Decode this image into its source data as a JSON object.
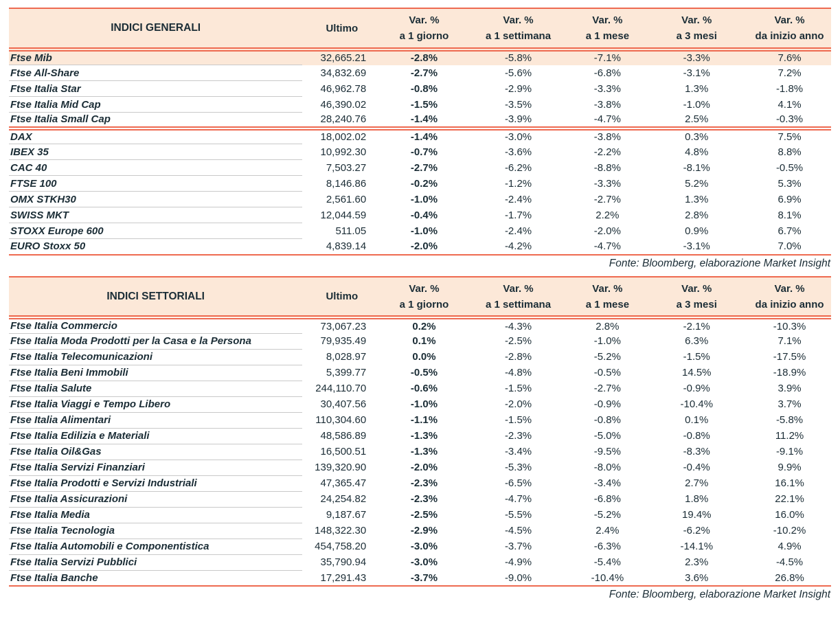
{
  "colors": {
    "accent_line": "#ee6a50",
    "header_background": "#fce8d8",
    "text": "#1b2d36",
    "row_hairline": "#c9c9c9",
    "highlight_row_background": "#fce8d8"
  },
  "source_note": "Fonte: Bloomberg, elaborazione Market Insight",
  "columns": {
    "ultimo": "Ultimo",
    "var_label": "Var. %",
    "sub": [
      "a 1 giorno",
      "a 1 settimana",
      "a 1 mese",
      "a 3 mesi",
      "da inizio anno"
    ]
  },
  "tables": [
    {
      "title": "INDICI GENERALI",
      "highlight_first_row": true,
      "groups": [
        {
          "rows": [
            {
              "name": "Ftse Mib",
              "ultimo": "32,665.21",
              "vars": [
                "-2.8%",
                "-5.8%",
                "-7.1%",
                "-3.3%",
                "7.6%"
              ]
            },
            {
              "name": "Ftse All-Share",
              "ultimo": "34,832.69",
              "vars": [
                "-2.7%",
                "-5.6%",
                "-6.8%",
                "-3.1%",
                "7.2%"
              ]
            },
            {
              "name": "Ftse Italia Star",
              "ultimo": "46,962.78",
              "vars": [
                "-0.8%",
                "-2.9%",
                "-3.3%",
                "1.3%",
                "-1.8%"
              ]
            },
            {
              "name": "Ftse Italia Mid Cap",
              "ultimo": "46,390.02",
              "vars": [
                "-1.5%",
                "-3.5%",
                "-3.8%",
                "-1.0%",
                "4.1%"
              ]
            },
            {
              "name": "Ftse Italia Small Cap",
              "ultimo": "28,240.76",
              "vars": [
                "-1.4%",
                "-3.9%",
                "-4.7%",
                "2.5%",
                "-0.3%"
              ]
            }
          ]
        },
        {
          "rows": [
            {
              "name": "DAX",
              "ultimo": "18,002.02",
              "vars": [
                "-1.4%",
                "-3.0%",
                "-3.8%",
                "0.3%",
                "7.5%"
              ]
            },
            {
              "name": "IBEX 35",
              "ultimo": "10,992.30",
              "vars": [
                "-0.7%",
                "-3.6%",
                "-2.2%",
                "4.8%",
                "8.8%"
              ]
            },
            {
              "name": "CAC 40",
              "ultimo": "7,503.27",
              "vars": [
                "-2.7%",
                "-6.2%",
                "-8.8%",
                "-8.1%",
                "-0.5%"
              ]
            },
            {
              "name": "FTSE 100",
              "ultimo": "8,146.86",
              "vars": [
                "-0.2%",
                "-1.2%",
                "-3.3%",
                "5.2%",
                "5.3%"
              ]
            },
            {
              "name": "OMX STKH30",
              "ultimo": "2,561.60",
              "vars": [
                "-1.0%",
                "-2.4%",
                "-2.7%",
                "1.3%",
                "6.9%"
              ]
            },
            {
              "name": "SWISS MKT",
              "ultimo": "12,044.59",
              "vars": [
                "-0.4%",
                "-1.7%",
                "2.2%",
                "2.8%",
                "8.1%"
              ]
            },
            {
              "name": "STOXX Europe 600",
              "ultimo": "511.05",
              "vars": [
                "-1.0%",
                "-2.4%",
                "-2.0%",
                "0.9%",
                "6.7%"
              ]
            },
            {
              "name": "EURO Stoxx 50",
              "ultimo": "4,839.14",
              "vars": [
                "-2.0%",
                "-4.2%",
                "-4.7%",
                "-3.1%",
                "7.0%"
              ]
            }
          ]
        }
      ]
    },
    {
      "title": "INDICI SETTORIALI",
      "highlight_first_row": false,
      "groups": [
        {
          "rows": [
            {
              "name": "Ftse Italia Commercio",
              "ultimo": "73,067.23",
              "vars": [
                "0.2%",
                "-4.3%",
                "2.8%",
                "-2.1%",
                "-10.3%"
              ]
            },
            {
              "name": "Ftse Italia Moda Prodotti per la Casa e la Persona",
              "ultimo": "79,935.49",
              "vars": [
                "0.1%",
                "-2.5%",
                "-1.0%",
                "6.3%",
                "7.1%"
              ]
            },
            {
              "name": "Ftse Italia Telecomunicazioni",
              "ultimo": "8,028.97",
              "vars": [
                "0.0%",
                "-2.8%",
                "-5.2%",
                "-1.5%",
                "-17.5%"
              ]
            },
            {
              "name": "Ftse Italia Beni Immobili",
              "ultimo": "5,399.77",
              "vars": [
                "-0.5%",
                "-4.8%",
                "-0.5%",
                "14.5%",
                "-18.9%"
              ]
            },
            {
              "name": "Ftse Italia Salute",
              "ultimo": "244,110.70",
              "vars": [
                "-0.6%",
                "-1.5%",
                "-2.7%",
                "-0.9%",
                "3.9%"
              ]
            },
            {
              "name": "Ftse Italia Viaggi e Tempo Libero",
              "ultimo": "30,407.56",
              "vars": [
                "-1.0%",
                "-2.0%",
                "-0.9%",
                "-10.4%",
                "3.7%"
              ]
            },
            {
              "name": "Ftse Italia Alimentari",
              "ultimo": "110,304.60",
              "vars": [
                "-1.1%",
                "-1.5%",
                "-0.8%",
                "0.1%",
                "-5.8%"
              ]
            },
            {
              "name": "Ftse Italia Edilizia e Materiali",
              "ultimo": "48,586.89",
              "vars": [
                "-1.3%",
                "-2.3%",
                "-5.0%",
                "-0.8%",
                "11.2%"
              ]
            },
            {
              "name": "Ftse Italia Oil&Gas",
              "ultimo": "16,500.51",
              "vars": [
                "-1.3%",
                "-3.4%",
                "-9.5%",
                "-8.3%",
                "-9.1%"
              ]
            },
            {
              "name": "Ftse Italia Servizi Finanziari",
              "ultimo": "139,320.90",
              "vars": [
                "-2.0%",
                "-5.3%",
                "-8.0%",
                "-0.4%",
                "9.9%"
              ]
            },
            {
              "name": "Ftse Italia Prodotti e Servizi Industriali",
              "ultimo": "47,365.47",
              "vars": [
                "-2.3%",
                "-6.5%",
                "-3.4%",
                "2.7%",
                "16.1%"
              ]
            },
            {
              "name": "Ftse Italia Assicurazioni",
              "ultimo": "24,254.82",
              "vars": [
                "-2.3%",
                "-4.7%",
                "-6.8%",
                "1.8%",
                "22.1%"
              ]
            },
            {
              "name": "Ftse Italia Media",
              "ultimo": "9,187.67",
              "vars": [
                "-2.5%",
                "-5.5%",
                "-5.2%",
                "19.4%",
                "16.0%"
              ]
            },
            {
              "name": "Ftse Italia Tecnologia",
              "ultimo": "148,322.30",
              "vars": [
                "-2.9%",
                "-4.5%",
                "2.4%",
                "-6.2%",
                "-10.2%"
              ]
            },
            {
              "name": "Ftse Italia Automobili e Componentistica",
              "ultimo": "454,758.20",
              "vars": [
                "-3.0%",
                "-3.7%",
                "-6.3%",
                "-14.1%",
                "4.9%"
              ]
            },
            {
              "name": "Ftse Italia Servizi Pubblici",
              "ultimo": "35,790.94",
              "vars": [
                "-3.0%",
                "-4.9%",
                "-5.4%",
                "2.3%",
                "-4.5%"
              ]
            },
            {
              "name": "Ftse Italia Banche",
              "ultimo": "17,291.43",
              "vars": [
                "-3.7%",
                "-9.0%",
                "-10.4%",
                "3.6%",
                "26.8%"
              ]
            }
          ]
        }
      ]
    }
  ]
}
